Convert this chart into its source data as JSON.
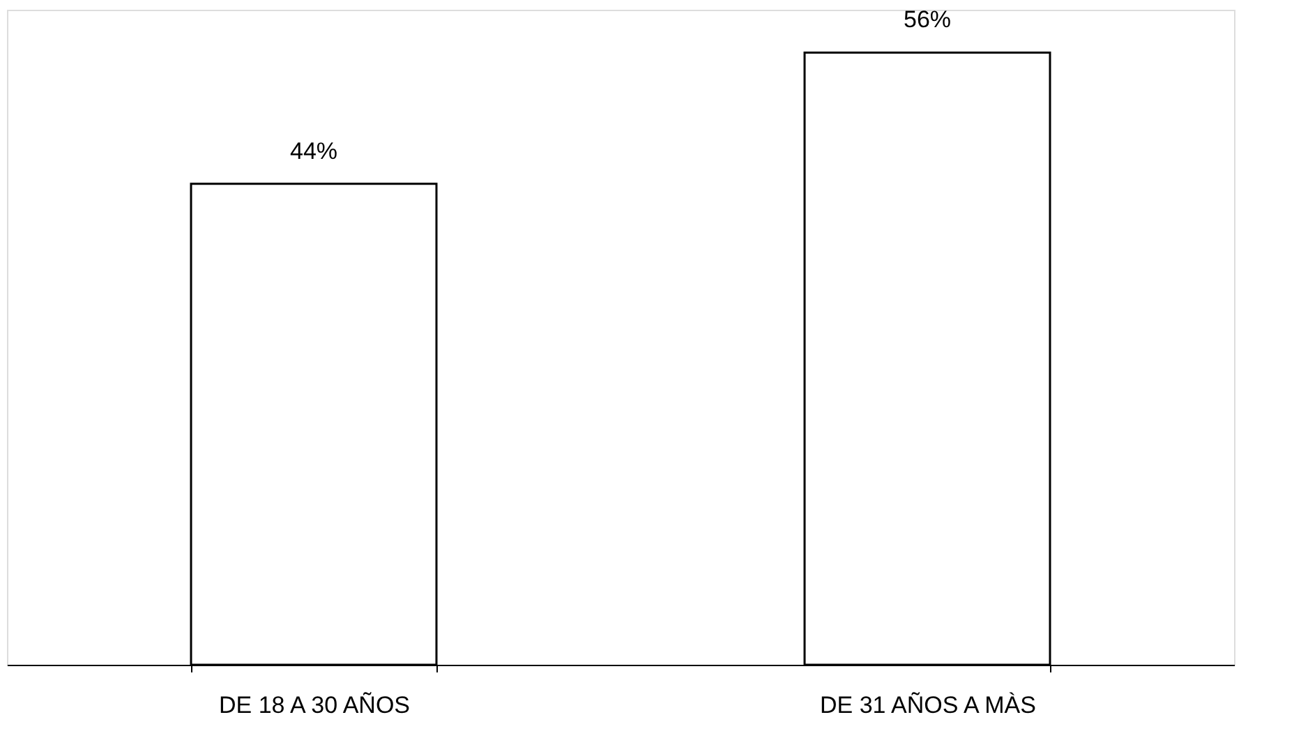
{
  "chart_data": {
    "type": "bar",
    "categories": [
      "DE 18 A 30 AÑOS",
      "DE 31 AÑOS A MÀS"
    ],
    "values": [
      44,
      56
    ],
    "value_labels": [
      "44%",
      "56%"
    ],
    "color": "#ffffff",
    "grid": false
  }
}
